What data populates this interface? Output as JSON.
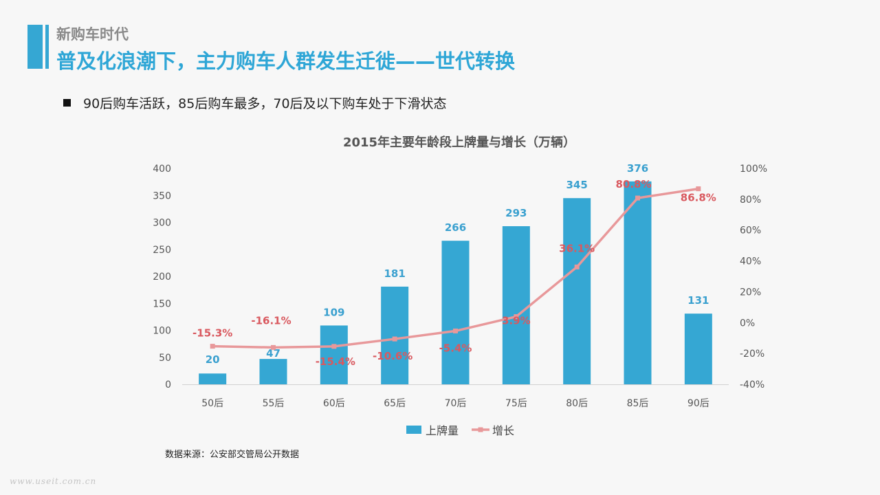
{
  "header": {
    "section_label": "新购车时代",
    "headline": "普及化浪潮下，主力购车人群发生迁徙——世代转换"
  },
  "bullet": {
    "text": "90后购车活跃，85后购车最多，70后及以下购车处于下滑状态"
  },
  "source_note": "数据来源：公安部交管局公开数据",
  "watermark": "www.useit.com.cn",
  "colors": {
    "bar": "#35a7d3",
    "line": "#e8989a",
    "bar_label": "#3aa0cf",
    "line_label": "#d9595f",
    "accent": "#35a7d3"
  },
  "chart_data": {
    "type": "bar",
    "title": "2015年主要年龄段上牌量与增长（万辆）",
    "categories": [
      "50后",
      "55后",
      "60后",
      "65后",
      "70后",
      "75后",
      "80后",
      "85后",
      "90后"
    ],
    "series": [
      {
        "name": "上牌量",
        "type": "bar",
        "axis": "left",
        "values": [
          20,
          47,
          109,
          181,
          266,
          293,
          345,
          376,
          131
        ],
        "labels": [
          "20",
          "47",
          "109",
          "181",
          "266",
          "293",
          "345",
          "376",
          "131"
        ]
      },
      {
        "name": "增长",
        "type": "line",
        "axis": "right",
        "values": [
          -15.3,
          -16.1,
          -15.4,
          -10.6,
          -5.4,
          3.9,
          36.1,
          80.8,
          86.8
        ],
        "labels": [
          "-15.3%",
          "-16.1%",
          "-15.4%",
          "-10.6%",
          "-5.4%",
          "3.9%",
          "36.1%",
          "80.8%",
          "86.8%"
        ]
      }
    ],
    "y_left": {
      "ylim": [
        0,
        400
      ],
      "ticks": [
        "0",
        "50",
        "100",
        "150",
        "200",
        "250",
        "300",
        "350",
        "400"
      ]
    },
    "y_right": {
      "ylim": [
        -40,
        100
      ],
      "ticks": [
        "-40%",
        "-20%",
        "0%",
        "20%",
        "40%",
        "60%",
        "80%",
        "100%"
      ]
    },
    "grid": false,
    "legend": "bottom"
  }
}
